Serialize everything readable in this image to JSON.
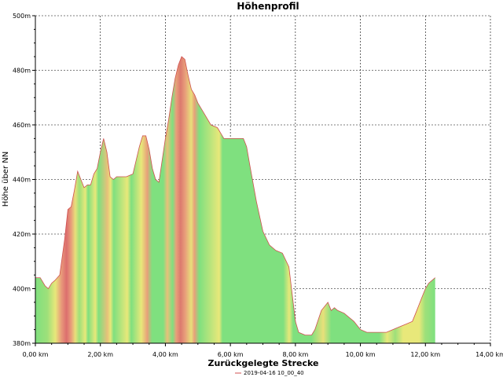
{
  "chart_data": {
    "type": "area",
    "title": "Höhenprofil",
    "xlabel": "Zurückgelegte Strecke",
    "ylabel": "Höhe über NN",
    "x_tick_labels": [
      "0,00 km",
      "2,00 km",
      "4,00 km",
      "6,00 km",
      "8,00 km",
      "10,00 km",
      "12,00 km",
      "14,00 km"
    ],
    "y_tick_labels": [
      "380m",
      "400m",
      "420m",
      "440m",
      "460m",
      "480m",
      "500m"
    ],
    "xlim": [
      0,
      14
    ],
    "ylim": [
      380,
      500
    ],
    "grid": true,
    "legend_position": "bottom",
    "series": [
      {
        "name": "2019-04-16 10_00_40",
        "x": [
          0.0,
          0.15,
          0.3,
          0.4,
          0.5,
          0.6,
          0.75,
          0.9,
          1.0,
          1.1,
          1.2,
          1.3,
          1.4,
          1.5,
          1.6,
          1.7,
          1.8,
          1.9,
          2.0,
          2.1,
          2.2,
          2.3,
          2.4,
          2.5,
          2.6,
          2.8,
          3.0,
          3.2,
          3.3,
          3.4,
          3.5,
          3.6,
          3.7,
          3.8,
          3.9,
          4.0,
          4.1,
          4.2,
          4.3,
          4.4,
          4.5,
          4.6,
          4.7,
          4.8,
          4.9,
          5.0,
          5.2,
          5.4,
          5.6,
          5.8,
          6.0,
          6.2,
          6.4,
          6.5,
          6.6,
          6.8,
          7.0,
          7.2,
          7.4,
          7.6,
          7.8,
          8.0,
          8.1,
          8.3,
          8.5,
          8.6,
          8.8,
          9.0,
          9.1,
          9.2,
          9.3,
          9.5,
          9.6,
          9.8,
          10.0,
          10.2,
          10.4,
          10.8,
          11.0,
          11.2,
          11.4,
          11.6,
          11.7,
          11.8,
          11.9,
          12.0,
          12.1,
          12.2,
          12.3
        ],
        "y": [
          404,
          404,
          401,
          400,
          402,
          403,
          405,
          418,
          429,
          430,
          436,
          443,
          440,
          437,
          438,
          438,
          442,
          444,
          450,
          455,
          450,
          441,
          440,
          441,
          441,
          441,
          442,
          452,
          456,
          456,
          451,
          444,
          440,
          439,
          447,
          455,
          462,
          470,
          477,
          482,
          485,
          484,
          478,
          473,
          471,
          468,
          464,
          460,
          459,
          455,
          455,
          455,
          455,
          452,
          445,
          432,
          421,
          416,
          414,
          413,
          408,
          388,
          384,
          383,
          383,
          385,
          392,
          395,
          392,
          393,
          392,
          391,
          390,
          388,
          385,
          384,
          384,
          384,
          385,
          386,
          387,
          388,
          391,
          394,
          397,
          400,
          402,
          403,
          404
        ]
      }
    ]
  }
}
